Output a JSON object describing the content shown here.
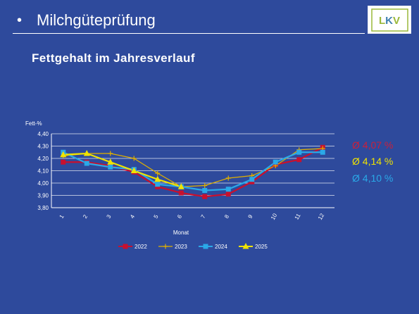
{
  "slide": {
    "bullet": "•",
    "title": "Milchgüteprüfung",
    "subtitle": "Fettgehalt im Jahresverlauf",
    "logo": {
      "text": "LKV",
      "letter_colors": [
        "#9ab83a",
        "#3f7fb0",
        "#9ab83a"
      ]
    }
  },
  "averages": [
    {
      "text": "Ø 4,07 %",
      "color": "#cc1f3a"
    },
    {
      "text": "Ø 4,14 %",
      "color": "#f0e300"
    },
    {
      "text": "Ø 4,10 %",
      "color": "#2aa9e8"
    }
  ],
  "chart_data": {
    "type": "line",
    "ylabel": "Fett-%",
    "xlabel": "Monat",
    "x": [
      "1",
      "2",
      "3",
      "4",
      "5",
      "6",
      "7",
      "8",
      "9",
      "10",
      "11",
      "12"
    ],
    "ylim": [
      3.8,
      4.4
    ],
    "yticks": [
      "3,80",
      "3,90",
      "4,00",
      "4,10",
      "4,20",
      "4,30",
      "4,40"
    ],
    "grid": true,
    "legend_position": "bottom",
    "series": [
      {
        "name": "2022",
        "color": "#c8102e",
        "marker": "square",
        "values": [
          4.17,
          4.17,
          4.14,
          4.09,
          3.97,
          3.92,
          3.89,
          3.91,
          4.01,
          4.15,
          4.19,
          4.29
        ]
      },
      {
        "name": "2023",
        "color": "#e0b000",
        "marker": "plus",
        "values": [
          4.22,
          4.24,
          4.24,
          4.2,
          4.08,
          3.97,
          3.98,
          4.04,
          4.06,
          4.14,
          4.27,
          4.28
        ]
      },
      {
        "name": "2024",
        "color": "#2aa9e8",
        "marker": "square",
        "values": [
          4.25,
          4.16,
          4.13,
          4.11,
          3.99,
          3.97,
          3.94,
          3.95,
          4.03,
          4.17,
          4.25,
          4.25
        ]
      },
      {
        "name": "2025",
        "color": "#f0e300",
        "marker": "triangle",
        "values": [
          4.23,
          4.24,
          4.17,
          4.1,
          4.03,
          3.97,
          null,
          null,
          null,
          null,
          null,
          null
        ]
      }
    ]
  }
}
